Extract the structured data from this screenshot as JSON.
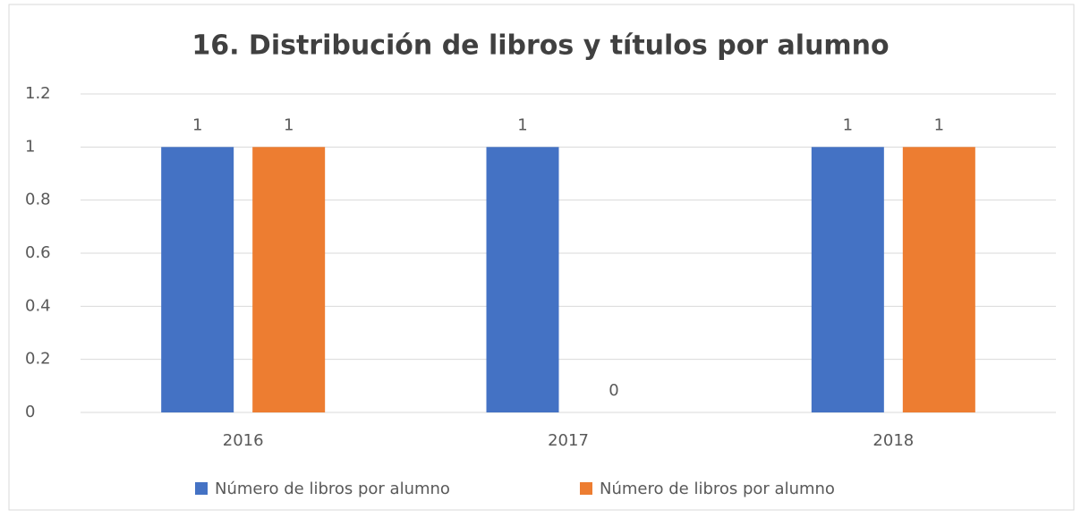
{
  "chart_data": {
    "type": "bar",
    "title": "16. Distribución de libros y títulos por alumno",
    "categories": [
      "2016",
      "2017",
      "2018"
    ],
    "series": [
      {
        "name": "Número de libros por alumno",
        "color": "#4472c4",
        "values": [
          1,
          1,
          1
        ]
      },
      {
        "name": "Número de libros por alumno",
        "color": "#ed7d31",
        "values": [
          1,
          0,
          1
        ]
      }
    ],
    "ylim": [
      0,
      1.2
    ],
    "yticks": [
      0,
      0.2,
      0.4,
      0.6,
      0.8,
      1,
      1.2
    ],
    "grid": true,
    "legend": "bottom"
  }
}
